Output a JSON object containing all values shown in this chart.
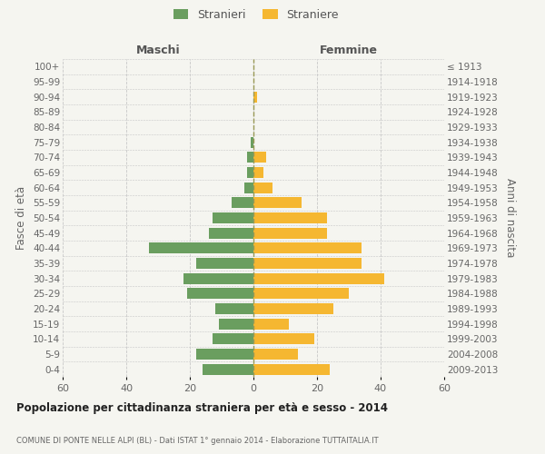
{
  "age_groups": [
    "100+",
    "95-99",
    "90-94",
    "85-89",
    "80-84",
    "75-79",
    "70-74",
    "65-69",
    "60-64",
    "55-59",
    "50-54",
    "45-49",
    "40-44",
    "35-39",
    "30-34",
    "25-29",
    "20-24",
    "15-19",
    "10-14",
    "5-9",
    "0-4"
  ],
  "birth_years": [
    "≤ 1913",
    "1914-1918",
    "1919-1923",
    "1924-1928",
    "1929-1933",
    "1934-1938",
    "1939-1943",
    "1944-1948",
    "1949-1953",
    "1954-1958",
    "1959-1963",
    "1964-1968",
    "1969-1973",
    "1974-1978",
    "1979-1983",
    "1984-1988",
    "1989-1993",
    "1994-1998",
    "1999-2003",
    "2004-2008",
    "2009-2013"
  ],
  "males": [
    0,
    0,
    0,
    0,
    0,
    1,
    2,
    2,
    3,
    7,
    13,
    14,
    33,
    18,
    22,
    21,
    12,
    11,
    13,
    18,
    16
  ],
  "females": [
    0,
    0,
    1,
    0,
    0,
    0,
    4,
    3,
    6,
    15,
    23,
    23,
    34,
    34,
    41,
    30,
    25,
    11,
    19,
    14,
    24
  ],
  "male_color": "#6a9e5f",
  "female_color": "#f5b731",
  "background_color": "#f5f5f0",
  "grid_color": "#c8c8c8",
  "title": "Popolazione per cittadinanza straniera per età e sesso - 2014",
  "subtitle": "COMUNE DI PONTE NELLE ALPI (BL) - Dati ISTAT 1° gennaio 2014 - Elaborazione TUTTAITALIA.IT",
  "legend_stranieri": "Stranieri",
  "legend_straniere": "Straniere",
  "label_maschi": "Maschi",
  "label_femmine": "Femmine",
  "ylabel_left": "Fasce di età",
  "ylabel_right": "Anni di nascita",
  "xlim": 60
}
